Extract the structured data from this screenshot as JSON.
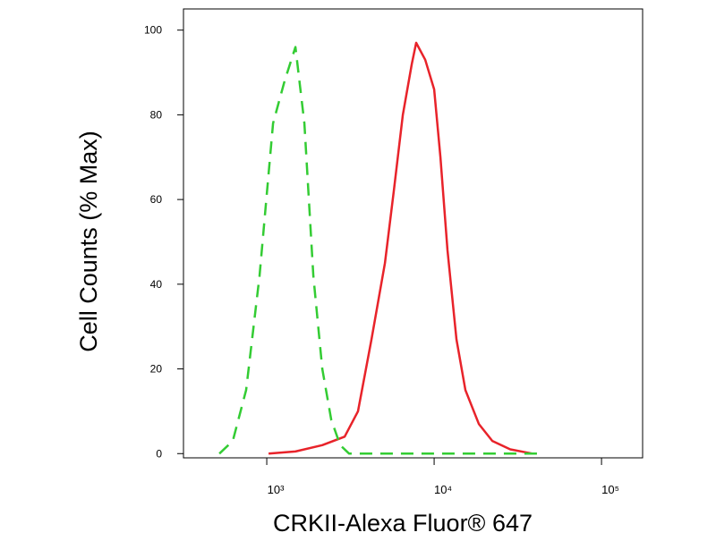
{
  "chart_data": {
    "type": "line",
    "xlabel": "CRKII-Alexa Fluor® 647",
    "ylabel": "Cell Counts (% Max)",
    "xscale": "log",
    "xlim": [
      318,
      176000
    ],
    "ylim": [
      -1,
      105
    ],
    "xticks": [
      {
        "value": 1000,
        "label": "10³"
      },
      {
        "value": 10000,
        "label": "10⁴"
      },
      {
        "value": 100000,
        "label": "10⁵"
      }
    ],
    "yticks": [
      0,
      20,
      40,
      60,
      80,
      100
    ],
    "series": [
      {
        "color": "#e8232a",
        "dash": false,
        "x": [
          1025,
          1483,
          2146,
          2920,
          3508,
          4223,
          5080,
          5740,
          6500,
          7350,
          7815,
          8850,
          10000,
          10900,
          12020,
          13600,
          15380,
          18500,
          22270,
          28500,
          38700
        ],
        "values": [
          0,
          0.5,
          2,
          4,
          10,
          27,
          45,
          62,
          80,
          92,
          97,
          93,
          86,
          70,
          48,
          27,
          15,
          7,
          3,
          1,
          0
        ]
      },
      {
        "color": "#33cc33",
        "dash": true,
        "x": [
          521,
          627,
          753,
          906,
          1090,
          1279,
          1483,
          1678,
          1898,
          2146,
          2428,
          2746,
          3105,
          41200
        ],
        "values": [
          0,
          3,
          15,
          42,
          78,
          88,
          96,
          78,
          42,
          20,
          8,
          2,
          0,
          0
        ]
      }
    ]
  }
}
